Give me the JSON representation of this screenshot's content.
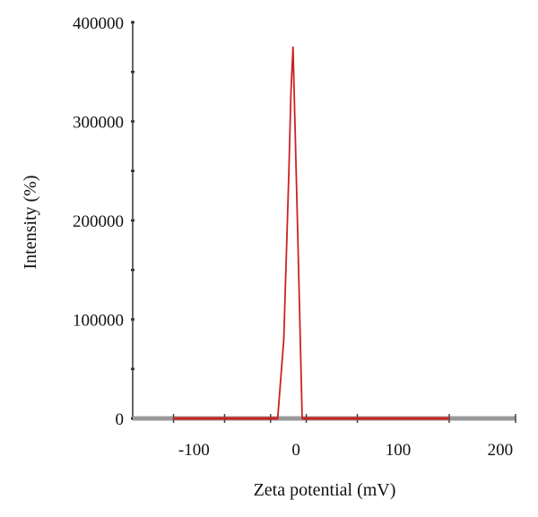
{
  "chart_data": {
    "type": "line",
    "title": "",
    "xlabel": "Zeta potential (mV)",
    "ylabel": "Intensity (%)",
    "xlim": [
      -160,
      215
    ],
    "ylim": [
      0,
      400000
    ],
    "x_ticks": [
      -100,
      0,
      100,
      200
    ],
    "x_tick_labels": [
      "-100",
      "0",
      "100",
      "200"
    ],
    "x_minor_ticks": [
      -120,
      -70,
      -25,
      10,
      60,
      150
    ],
    "y_ticks": [
      0,
      100000,
      200000,
      300000,
      400000
    ],
    "y_tick_labels": [
      "0",
      "100000",
      "200000",
      "300000",
      "400000"
    ],
    "y_minor_ticks": [
      50000,
      150000,
      250000,
      350000
    ],
    "grid": false,
    "legend": "none",
    "series": [
      {
        "color": "#cc2222",
        "x": [
          -120,
          -18,
          -12,
          -7,
          -5,
          -3,
          2,
          6,
          150
        ],
        "y": [
          0,
          0,
          80000,
          250000,
          330000,
          375000,
          170000,
          0,
          0
        ]
      }
    ],
    "colors": {
      "axis": "#999999",
      "series": "#cc2222",
      "text": "#111111"
    }
  }
}
